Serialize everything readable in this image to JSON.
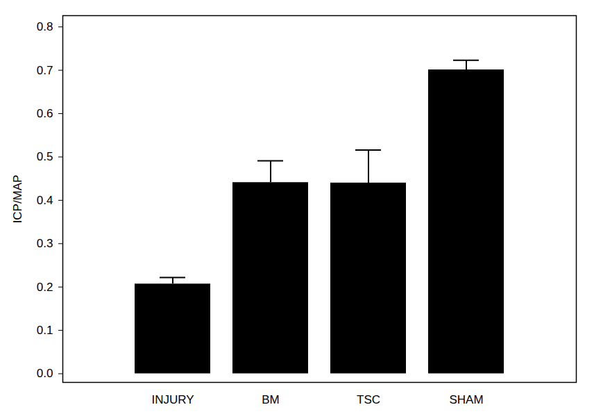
{
  "chart_data": {
    "type": "bar",
    "y_label": "ICP/MAP",
    "categories": [
      "INJURY",
      "BM",
      "TSC",
      "SHAM"
    ],
    "values": [
      0.207,
      0.441,
      0.44,
      0.701
    ],
    "errors": [
      0.015,
      0.05,
      0.076,
      0.022
    ],
    "color": "#000000",
    "ylim": [
      -0.02,
      0.826
    ],
    "yticks": [
      {
        "value": 0,
        "label": "0.0"
      },
      {
        "value": 0.1,
        "label": "0.1"
      },
      {
        "value": 0.2,
        "label": "0.2"
      },
      {
        "value": 0.3,
        "label": "0.3"
      },
      {
        "value": 0.4,
        "label": "0.4"
      },
      {
        "value": 0.5,
        "label": "0.5"
      },
      {
        "value": 0.6,
        "label": "0.6"
      },
      {
        "value": 0.7,
        "label": "0.7"
      },
      {
        "value": 0.8,
        "label": "0.8"
      }
    ],
    "grid": false
  }
}
